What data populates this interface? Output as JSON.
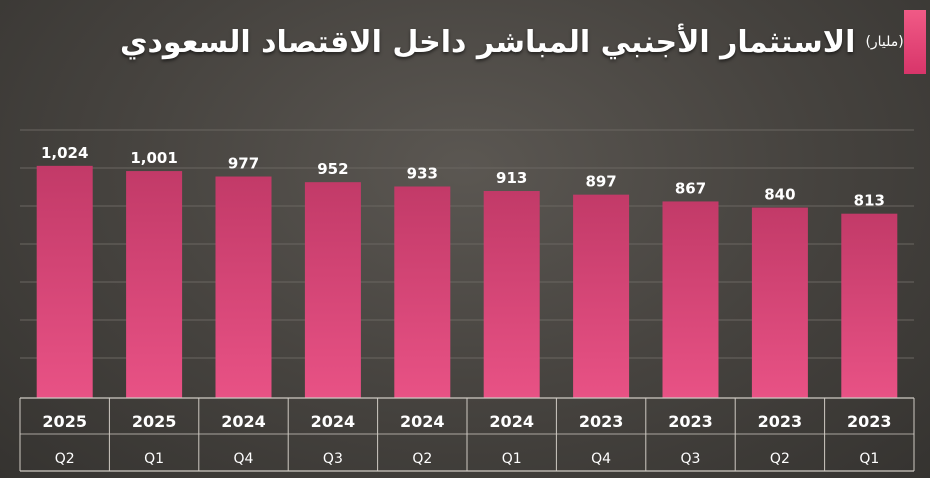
{
  "header": {
    "title": "الاستثمار الأجنبي المباشر داخل الاقتصاد السعودي",
    "unit": "(مليار)",
    "currency_icon": "saudi-riyal-icon"
  },
  "colors": {
    "bar": "#e04a7a",
    "bar_dark": "#b8315e",
    "accent": "#e8457a",
    "background": "#4a4743"
  },
  "chart_data": {
    "type": "bar",
    "title": "الاستثمار الأجنبي المباشر داخل الاقتصاد السعودي",
    "unit": "(مليار)",
    "categories": [
      {
        "year": "2025",
        "quarter": "Q2"
      },
      {
        "year": "2025",
        "quarter": "Q1"
      },
      {
        "year": "2024",
        "quarter": "Q4"
      },
      {
        "year": "2024",
        "quarter": "Q3"
      },
      {
        "year": "2024",
        "quarter": "Q2"
      },
      {
        "year": "2024",
        "quarter": "Q1"
      },
      {
        "year": "2023",
        "quarter": "Q4"
      },
      {
        "year": "2023",
        "quarter": "Q3"
      },
      {
        "year": "2023",
        "quarter": "Q2"
      },
      {
        "year": "2023",
        "quarter": "Q1"
      }
    ],
    "values": [
      1024,
      1001,
      977,
      952,
      933,
      913,
      897,
      867,
      840,
      813
    ],
    "value_labels": [
      "1,024",
      "1,001",
      "977",
      "952",
      "933",
      "913",
      "897",
      "867",
      "840",
      "813"
    ],
    "ylim": [
      0,
      1100
    ],
    "grid": true,
    "legend": "none"
  }
}
